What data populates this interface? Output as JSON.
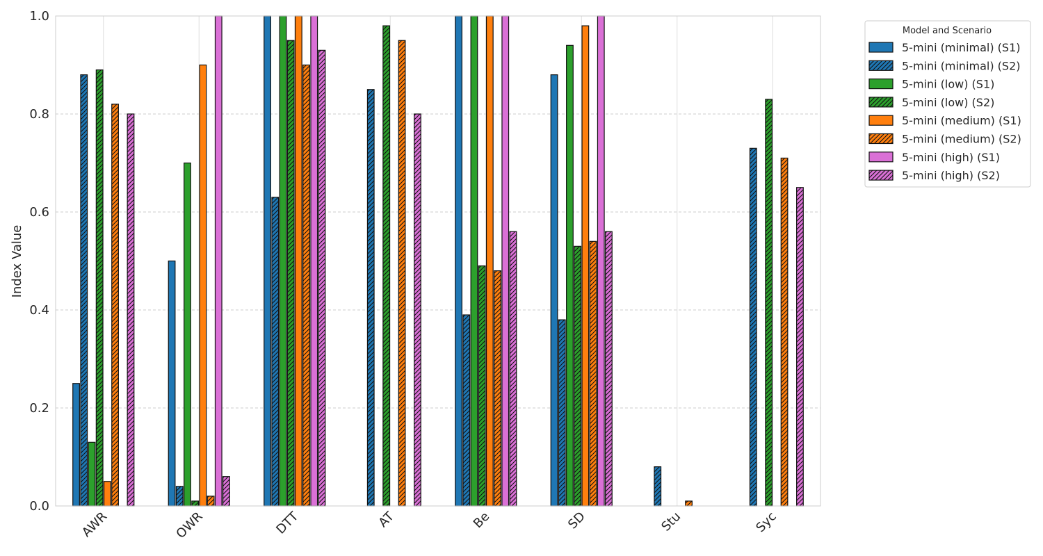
{
  "chart_data": {
    "type": "bar",
    "title": "",
    "xlabel": "",
    "ylabel": "Index Value",
    "ylim": [
      0,
      1.0
    ],
    "yticks": [
      "0.0",
      "0.2",
      "0.4",
      "0.6",
      "0.8",
      "1.0"
    ],
    "grid": true,
    "legend_title": "Model and Scenario",
    "legend_position": "outside-top-right",
    "categories": [
      "AWR",
      "OWR",
      "DTT",
      "AT",
      "Be",
      "SD",
      "Stu",
      "Syc"
    ],
    "series": [
      {
        "name": "5-mini (minimal) (S1)",
        "color": "#1f77b4",
        "hatch": false,
        "values": [
          0.25,
          0.5,
          1.0,
          0.0,
          1.0,
          0.88,
          0.0,
          0.0
        ]
      },
      {
        "name": "5-mini (minimal) (S2)",
        "color": "#1f77b4",
        "hatch": true,
        "values": [
          0.88,
          0.04,
          0.63,
          0.85,
          0.39,
          0.38,
          0.08,
          0.73
        ]
      },
      {
        "name": "5-mini (low) (S1)",
        "color": "#2ca02c",
        "hatch": false,
        "values": [
          0.13,
          0.7,
          1.0,
          0.0,
          1.0,
          0.94,
          0.0,
          0.0
        ]
      },
      {
        "name": "5-mini (low) (S2)",
        "color": "#2ca02c",
        "hatch": true,
        "values": [
          0.89,
          0.01,
          0.95,
          0.98,
          0.49,
          0.53,
          0.0,
          0.83
        ]
      },
      {
        "name": "5-mini (medium) (S1)",
        "color": "#ff7f0e",
        "hatch": false,
        "values": [
          0.05,
          0.9,
          1.0,
          0.0,
          1.0,
          0.98,
          0.0,
          0.0
        ]
      },
      {
        "name": "5-mini (medium) (S2)",
        "color": "#ff7f0e",
        "hatch": true,
        "values": [
          0.82,
          0.02,
          0.9,
          0.95,
          0.48,
          0.54,
          0.01,
          0.71
        ]
      },
      {
        "name": "5-mini (high) (S1)",
        "color": "#da70d6",
        "hatch": false,
        "values": [
          0.0,
          1.0,
          1.0,
          0.0,
          1.0,
          1.0,
          0.0,
          0.0
        ]
      },
      {
        "name": "5-mini (high) (S2)",
        "color": "#da70d6",
        "hatch": true,
        "values": [
          0.8,
          0.06,
          0.93,
          0.8,
          0.56,
          0.56,
          0.0,
          0.65
        ]
      }
    ]
  }
}
